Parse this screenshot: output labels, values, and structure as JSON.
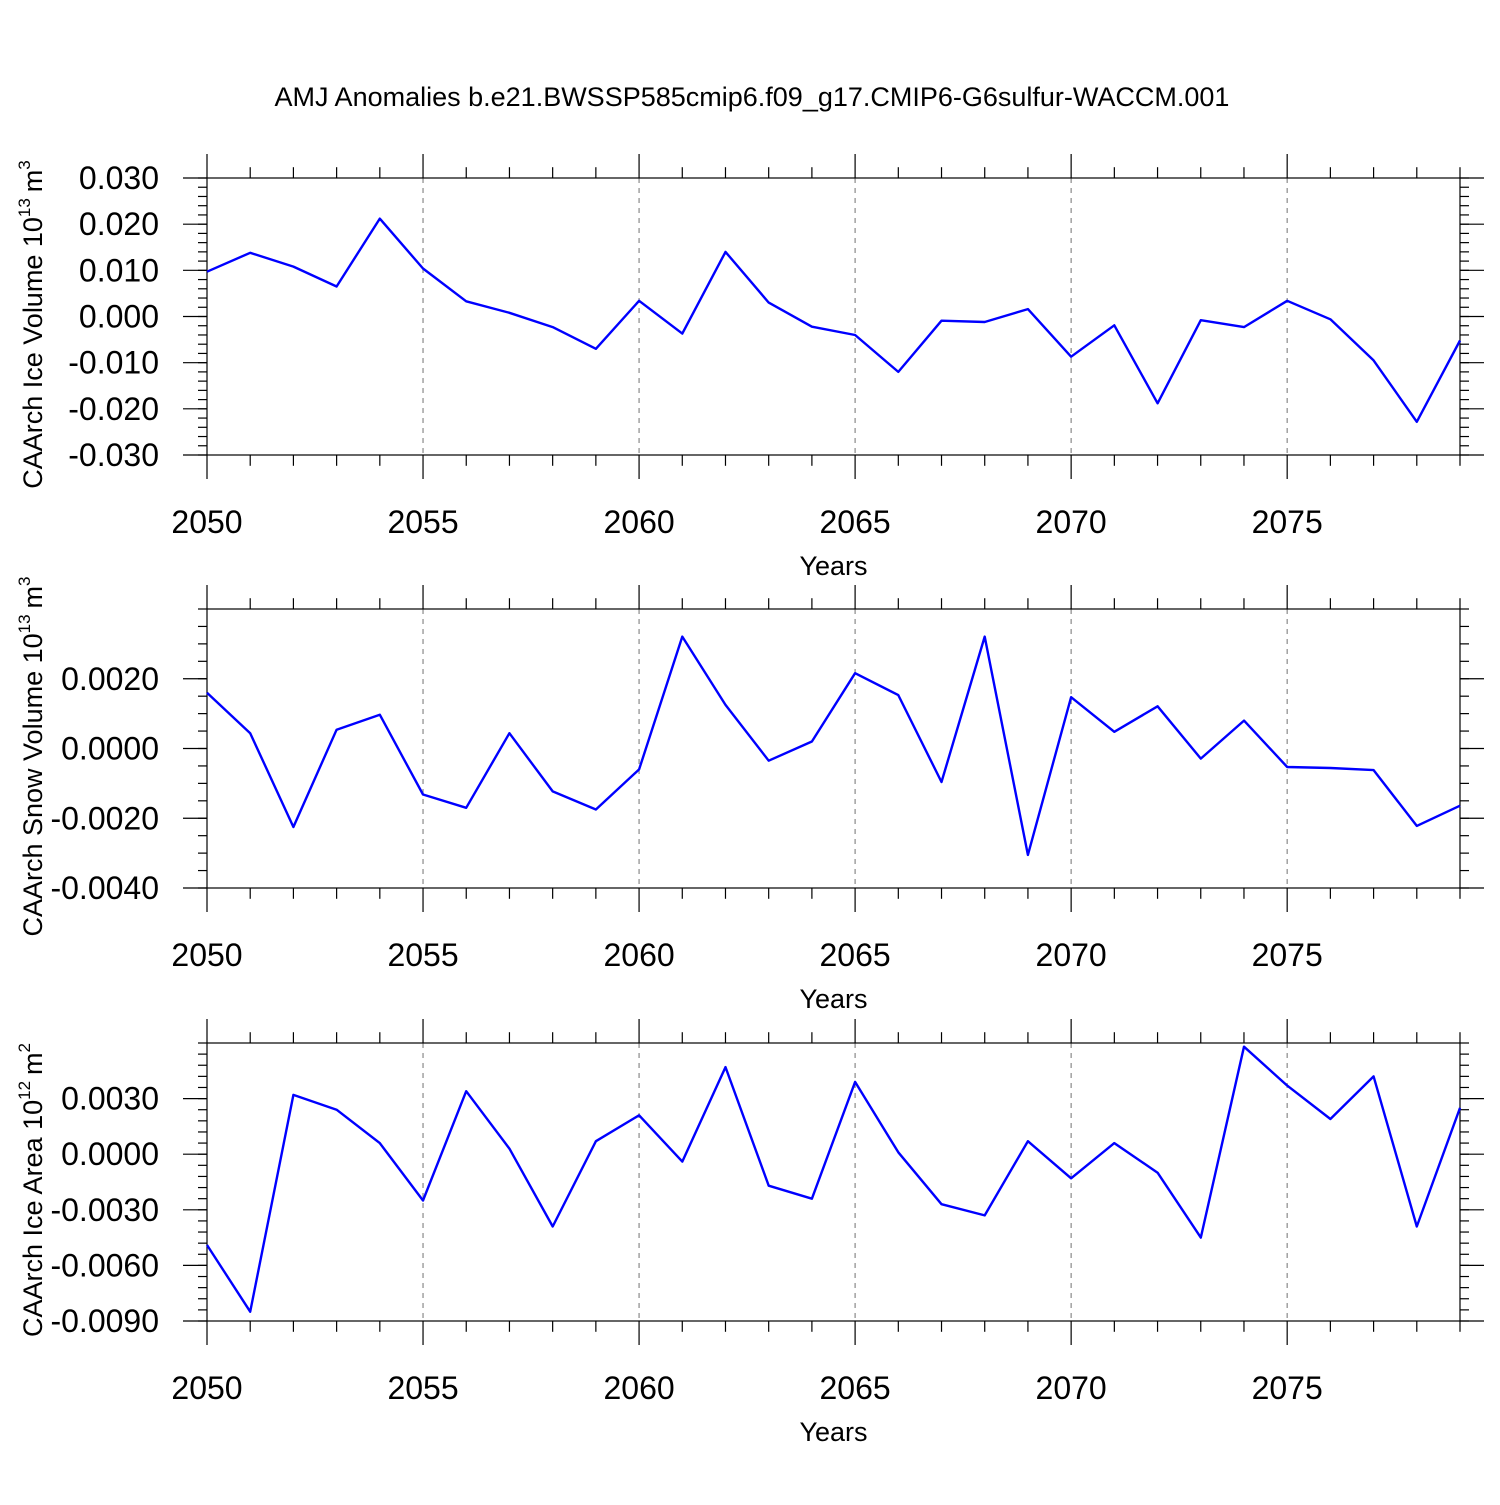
{
  "chart_data": {
    "type": "line",
    "title": "AMJ Anomalies b.e21.BWSSP585cmip6.f09_g17.CMIP6-G6sulfur-WACCM.001",
    "line_color": "#0000ff",
    "grid_color": "#8a8a8a",
    "xlabel": "Years",
    "x": [
      2050,
      2051,
      2052,
      2053,
      2054,
      2055,
      2056,
      2057,
      2058,
      2059,
      2060,
      2061,
      2062,
      2063,
      2064,
      2065,
      2066,
      2067,
      2068,
      2069,
      2070,
      2071,
      2072,
      2073,
      2074,
      2075,
      2076,
      2077,
      2078,
      2079
    ],
    "xlim": [
      2050,
      2079
    ],
    "x_major_ticks": [
      2050,
      2055,
      2060,
      2065,
      2070,
      2075
    ],
    "x_tick_labels": [
      "2050",
      "2055",
      "2060",
      "2065",
      "2070",
      "2075"
    ],
    "x_grid": "dashed vertical lines at 2055, 2060, 2065, 2070, 2075",
    "panels": [
      {
        "ylabel": "CAArch Ice Volume 10",
        "ylabel_exp": "13",
        "ylabel_unit": "m",
        "ylabel_unit_exp": "3",
        "ylim": [
          -0.03,
          0.03
        ],
        "yticks": [
          -0.03,
          -0.02,
          -0.01,
          0.0,
          0.01,
          0.02,
          0.03
        ],
        "ytick_labels": [
          "-0.030",
          "-0.020",
          "-0.010",
          "0.000",
          "0.010",
          "0.020",
          "0.030"
        ],
        "yminor_step": 0.002,
        "values": [
          0.0097,
          0.0138,
          0.0108,
          0.0065,
          0.0212,
          0.0104,
          0.0033,
          0.0008,
          -0.0023,
          -0.007,
          0.0034,
          -0.0037,
          0.014,
          0.003,
          -0.0022,
          -0.004,
          -0.012,
          -0.0009,
          -0.0012,
          0.0016,
          -0.0087,
          -0.0019,
          -0.0188,
          -0.0008,
          -0.0023,
          0.0034,
          -0.0006,
          -0.0095,
          -0.0228,
          -0.0052
        ]
      },
      {
        "ylabel": "CAArch Snow Volume 10",
        "ylabel_exp": "13",
        "ylabel_unit": "m",
        "ylabel_unit_exp": "3",
        "ylim": [
          -0.004,
          0.004
        ],
        "yticks": [
          -0.004,
          -0.002,
          0.0,
          0.002
        ],
        "ytick_labels": [
          "-0.0040",
          "-0.0020",
          "0.0000",
          "0.0020"
        ],
        "yminor_step": 0.0005,
        "values": [
          0.0016,
          0.00044,
          -0.00225,
          0.00054,
          0.00097,
          -0.00132,
          -0.0017,
          0.00044,
          -0.00123,
          -0.00175,
          -0.0006,
          0.00321,
          0.00125,
          -0.00035,
          0.0002,
          0.00216,
          0.00153,
          -0.00096,
          0.00321,
          -0.00305,
          0.00147,
          0.00048,
          0.00121,
          -0.00029,
          0.0008,
          -0.00053,
          -0.00056,
          -0.00062,
          -0.00222,
          -0.00164
        ]
      },
      {
        "ylabel": "CAArch Ice Area 10",
        "ylabel_exp": "12",
        "ylabel_unit": "m",
        "ylabel_unit_exp": "2",
        "ylim": [
          -0.009,
          0.006
        ],
        "yticks": [
          -0.009,
          -0.006,
          -0.003,
          0.0,
          0.003
        ],
        "ytick_labels": [
          "-0.0090",
          "-0.0060",
          "-0.0030",
          "0.0000",
          "0.0030"
        ],
        "yminor_step": 0.0006,
        "values": [
          -0.0049,
          -0.0085,
          0.0032,
          0.0024,
          0.0006,
          -0.0025,
          0.0034,
          0.0003,
          -0.0039,
          0.0007,
          0.0021,
          -0.0004,
          0.0047,
          -0.0017,
          -0.0024,
          0.0039,
          0.0001,
          -0.0027,
          -0.0033,
          0.0007,
          -0.0013,
          0.0006,
          -0.001,
          -0.0045,
          0.0058,
          0.0037,
          0.0019,
          0.0042,
          -0.0039,
          0.0025
        ]
      }
    ]
  }
}
